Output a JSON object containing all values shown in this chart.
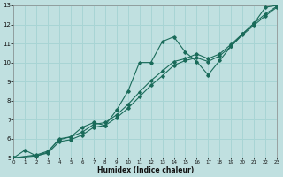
{
  "xlabel": "Humidex (Indice chaleur)",
  "bg_color": "#c0e0e0",
  "grid_color": "#a8d4d4",
  "line_color": "#1a6b5a",
  "xlim": [
    0,
    23
  ],
  "ylim": [
    5,
    13
  ],
  "xticks": [
    0,
    1,
    2,
    3,
    4,
    5,
    6,
    7,
    8,
    9,
    10,
    11,
    12,
    13,
    14,
    15,
    16,
    17,
    18,
    19,
    20,
    21,
    22,
    23
  ],
  "yticks": [
    5,
    6,
    7,
    8,
    9,
    10,
    11,
    12,
    13
  ],
  "series1_x": [
    0,
    1,
    2,
    3,
    4,
    5,
    6,
    7,
    8,
    9,
    10,
    11,
    12,
    13,
    14,
    15,
    16,
    17,
    18,
    19,
    20,
    21,
    22,
    23
  ],
  "series1_y": [
    5.0,
    5.4,
    5.1,
    5.3,
    6.0,
    6.1,
    6.6,
    6.85,
    6.7,
    7.5,
    8.5,
    10.0,
    10.0,
    11.1,
    11.35,
    10.55,
    10.05,
    9.35,
    10.1,
    10.85,
    11.5,
    12.05,
    12.9,
    13.0
  ],
  "series2_x": [
    0,
    2,
    3,
    4,
    5,
    6,
    7,
    8,
    9,
    10,
    11,
    12,
    13,
    14,
    15,
    16,
    17,
    18,
    19,
    20,
    21,
    22,
    23
  ],
  "series2_y": [
    5.0,
    5.15,
    5.35,
    5.95,
    6.1,
    6.35,
    6.75,
    6.85,
    7.25,
    7.8,
    8.45,
    9.05,
    9.55,
    10.05,
    10.2,
    10.45,
    10.2,
    10.45,
    10.95,
    11.5,
    12.05,
    12.55,
    12.95
  ],
  "series3_x": [
    0,
    2,
    3,
    4,
    5,
    6,
    7,
    8,
    9,
    10,
    11,
    12,
    13,
    14,
    15,
    16,
    17,
    18,
    19,
    20,
    21,
    22,
    23
  ],
  "series3_y": [
    5.0,
    5.1,
    5.25,
    5.85,
    5.95,
    6.2,
    6.6,
    6.7,
    7.1,
    7.6,
    8.2,
    8.8,
    9.3,
    9.85,
    10.1,
    10.25,
    10.05,
    10.35,
    10.85,
    11.45,
    11.95,
    12.45,
    12.9
  ]
}
